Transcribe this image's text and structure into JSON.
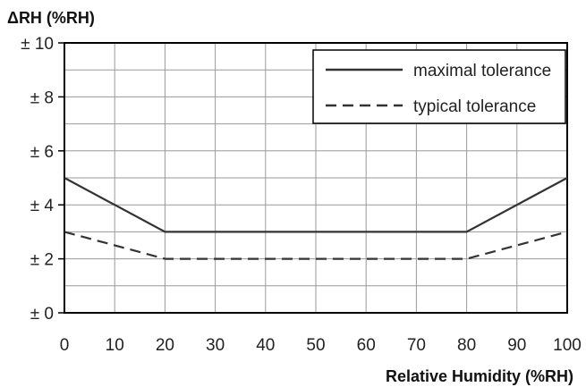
{
  "chart_data": {
    "type": "line",
    "title": "",
    "ylabel": "ΔRH (%RH)",
    "xlabel": "Relative Humidity (%RH)",
    "xlim": [
      0,
      100
    ],
    "ylim": [
      0,
      10
    ],
    "x_ticks": [
      "0",
      "10",
      "20",
      "30",
      "40",
      "50",
      "60",
      "70",
      "80",
      "90",
      "100"
    ],
    "y_ticks": [
      {
        "value": 0,
        "label": "± 0"
      },
      {
        "value": 2,
        "label": "± 2"
      },
      {
        "value": 4,
        "label": "± 4"
      },
      {
        "value": 6,
        "label": "± 6"
      },
      {
        "value": 8,
        "label": "± 8"
      },
      {
        "value": 10,
        "label": "± 10"
      }
    ],
    "grid": true,
    "legend_position": "top-right",
    "series": [
      {
        "name": "maximal tolerance",
        "style": "solid",
        "color": "#333333",
        "x": [
          0,
          20,
          80,
          100
        ],
        "y": [
          5,
          3,
          3,
          5
        ]
      },
      {
        "name": "typical tolerance",
        "style": "dashed",
        "color": "#333333",
        "x": [
          0,
          20,
          80,
          100
        ],
        "y": [
          3,
          2,
          2,
          3
        ]
      }
    ]
  }
}
